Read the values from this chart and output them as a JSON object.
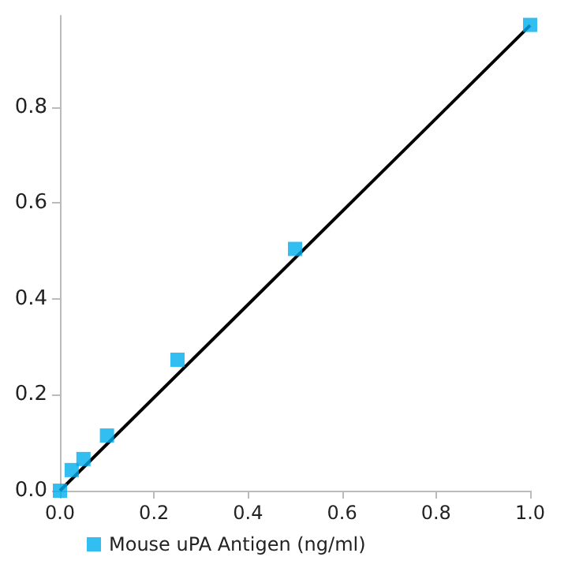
{
  "chart_data": {
    "type": "scatter",
    "x": [
      0,
      0.025,
      0.05,
      0.1,
      0.25,
      0.5,
      1.0
    ],
    "series": [
      {
        "name": "Mouse uPA Antigen (ng/ml)",
        "type": "scatter",
        "color": "#00aeef",
        "marker": "square",
        "values": [
          0.0,
          0.043,
          0.066,
          0.115,
          0.273,
          0.504,
          0.971
        ]
      },
      {
        "type": "line",
        "color": "#000000",
        "marker": "none",
        "line_style": "solid",
        "x": [
          0,
          1.0
        ],
        "values": [
          0,
          0.97
        ]
      }
    ],
    "xlim": [
      0,
      1.0
    ],
    "xticks": [
      {
        "value": 0,
        "label": "0.0"
      },
      0.2,
      0.4,
      0.6,
      0.8,
      {
        "value": 1.0,
        "label": "1.0"
      }
    ],
    "ylim": [
      0,
      0.99
    ],
    "yticks": [
      {
        "value": 0,
        "label": "0.0"
      },
      0.2,
      0.4,
      0.6,
      0.8
    ],
    "grid": false,
    "legend": "bottom"
  }
}
